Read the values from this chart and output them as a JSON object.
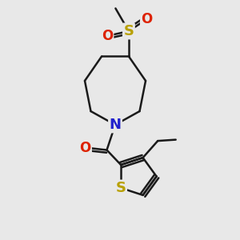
{
  "background_color": "#e8e8e8",
  "bond_color": "#1a1a1a",
  "bond_width": 1.8,
  "S_sulfonyl_color": "#b8a000",
  "S_thiophene_color": "#b8a000",
  "O_color": "#dd2200",
  "N_color": "#2222cc",
  "font_size_S": 13,
  "font_size_O": 12,
  "font_size_N": 13,
  "fig_width": 3.0,
  "fig_height": 3.0,
  "dpi": 100,
  "xlim": [
    0,
    10
  ],
  "ylim": [
    0,
    10
  ]
}
